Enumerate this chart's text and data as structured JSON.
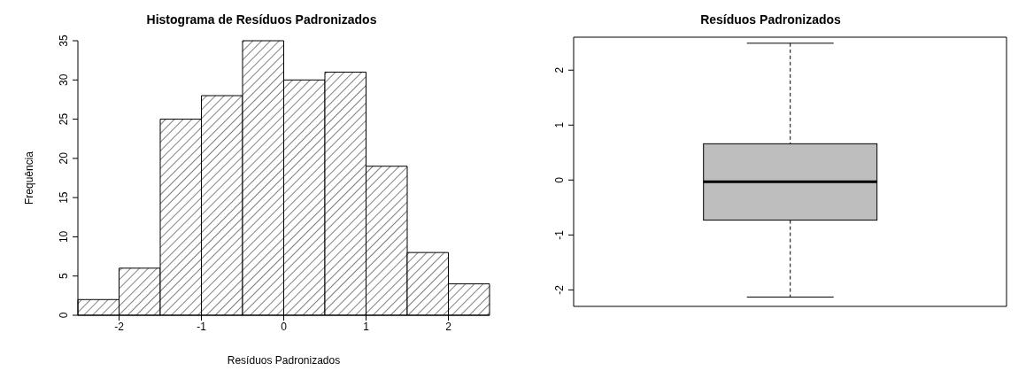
{
  "chart_data": [
    {
      "type": "histogram",
      "title": "Histograma de Resíduos Padronizados",
      "xlabel": "Resíduos Padronizados",
      "ylabel": "Frequência",
      "bins": [
        -2.5,
        -2,
        -1.5,
        -1,
        -0.5,
        0,
        0.5,
        1,
        1.5,
        2,
        2.5
      ],
      "values": [
        2,
        6,
        25,
        28,
        35,
        30,
        31,
        19,
        8,
        4
      ],
      "color": "#000000",
      "xlim": [
        -2.5,
        2.5
      ],
      "xticks": [
        -2,
        -1,
        0,
        1,
        2
      ],
      "ylim": [
        0,
        35
      ],
      "yticks": [
        0,
        5,
        10,
        15,
        20,
        25,
        30,
        35
      ]
    },
    {
      "type": "box",
      "title": "Resíduos Padronizados",
      "categories": [
        null
      ],
      "color": "#bebebe",
      "boxes": [
        {
          "low": -2.13,
          "q1": -0.73,
          "median": -0.03,
          "q3": 0.66,
          "high": 2.49
        }
      ],
      "ylim": [
        -2.3,
        2.6
      ],
      "yticks": [
        -2,
        -1,
        0,
        1,
        2
      ]
    }
  ]
}
